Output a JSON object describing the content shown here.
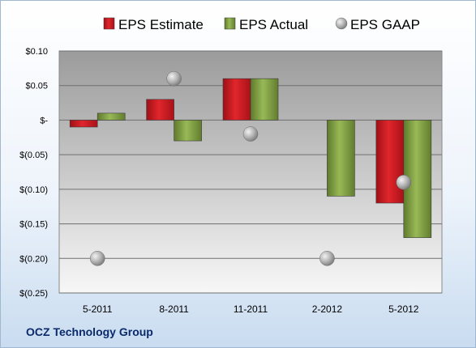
{
  "company": "OCZ Technology Group",
  "chart_data": {
    "type": "bar",
    "categories": [
      "5-2011",
      "8-2011",
      "11-2011",
      "2-2012",
      "5-2012"
    ],
    "series": [
      {
        "name": "EPS Estimate",
        "kind": "bar",
        "color": "#c0161d",
        "values": [
          -0.01,
          0.03,
          0.06,
          null,
          -0.12
        ]
      },
      {
        "name": "EPS Actual",
        "kind": "bar",
        "color": "#77933c",
        "values": [
          0.01,
          -0.03,
          0.06,
          -0.11,
          -0.17
        ]
      },
      {
        "name": "EPS GAAP",
        "kind": "marker",
        "color": "#a6a6a6",
        "values": [
          -0.2,
          0.06,
          -0.02,
          -0.2,
          -0.09
        ]
      }
    ],
    "yticks": [
      0.1,
      0.05,
      0,
      -0.05,
      -0.1,
      -0.15,
      -0.2,
      -0.25
    ],
    "ytick_labels": [
      "$0.10",
      "$0.05",
      "$-",
      "$(0.05)",
      "$(0.10)",
      "$(0.15)",
      "$(0.20)",
      "$(0.25)"
    ],
    "ylim": [
      -0.25,
      0.1
    ],
    "legend_position": "top",
    "grid": true
  }
}
